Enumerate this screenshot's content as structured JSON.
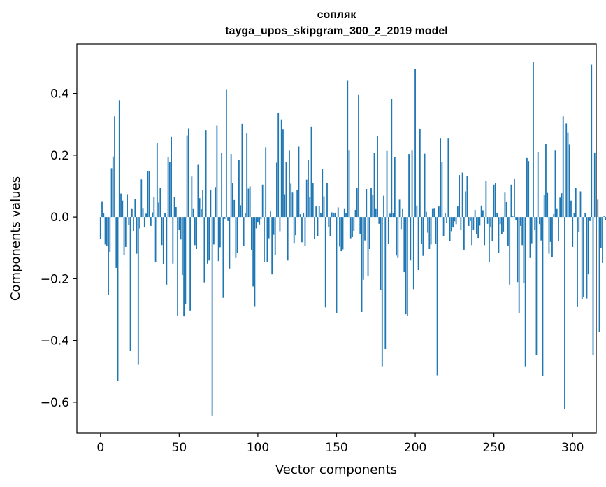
{
  "chart_data": {
    "type": "bar",
    "title": "сопляк",
    "subtitle": "tayga_upos_skipgram_300_2_2019 model",
    "xlabel": "Vector components",
    "ylabel": "Components values",
    "xlim": [
      -15,
      315
    ],
    "ylim": [
      -0.7,
      0.56
    ],
    "xticks": [
      0,
      50,
      100,
      150,
      200,
      250,
      300
    ],
    "yticks": [
      -0.6,
      -0.4,
      -0.2,
      0.0,
      0.2,
      0.4
    ],
    "ytick_labels": [
      "−0.6",
      "−0.4",
      "−0.2",
      "0.0",
      "0.2",
      "0.4"
    ],
    "bar_color": "#1f77b4",
    "grid": false,
    "values": [
      -0.071,
      0.051,
      0.012,
      -0.089,
      -0.094,
      -0.253,
      -0.113,
      0.158,
      0.196,
      0.326,
      -0.165,
      -0.531,
      0.378,
      0.076,
      0.053,
      -0.124,
      -0.097,
      0.074,
      -0.025,
      -0.433,
      0.028,
      -0.045,
      0.059,
      -0.119,
      -0.477,
      -0.037,
      0.122,
      0.029,
      -0.034,
      0.011,
      0.148,
      0.148,
      -0.029,
      0.015,
      0.066,
      -0.147,
      0.239,
      0.047,
      0.095,
      -0.091,
      -0.153,
      0.012,
      -0.219,
      0.195,
      0.179,
      0.259,
      -0.151,
      0.066,
      0.032,
      -0.319,
      -0.041,
      -0.073,
      -0.188,
      -0.322,
      -0.283,
      0.264,
      0.287,
      -0.303,
      0.131,
      0.028,
      -0.091,
      -0.104,
      0.169,
      0.061,
      0.025,
      0.088,
      -0.212,
      0.281,
      -0.151,
      -0.141,
      0.088,
      -0.643,
      -0.089,
      0.097,
      0.296,
      -0.143,
      -0.098,
      0.208,
      -0.262,
      -0.006,
      0.414,
      -0.013,
      -0.167,
      0.204,
      0.109,
      0.055,
      -0.133,
      -0.117,
      0.184,
      0.038,
      0.302,
      -0.094,
      0.012,
      0.272,
      0.092,
      0.099,
      -0.107,
      -0.225,
      -0.291,
      -0.037,
      -0.016,
      -0.024,
      -0.007,
      0.105,
      -0.146,
      0.226,
      -0.146,
      -0.069,
      0.018,
      -0.186,
      -0.058,
      -0.123,
      0.176,
      0.338,
      -0.046,
      0.316,
      0.283,
      0.074,
      0.177,
      -0.141,
      0.215,
      0.108,
      0.079,
      -0.084,
      -0.059,
      0.087,
      0.228,
      0.009,
      -0.082,
      0.014,
      -0.093,
      0.121,
      0.185,
      0.066,
      0.293,
      0.109,
      -0.071,
      0.034,
      -0.061,
      0.036,
      0.013,
      0.155,
      0.067,
      -0.293,
      0.111,
      -0.032,
      -0.061,
      0.015,
      0.013,
      0.014,
      -0.312,
      0.031,
      -0.096,
      -0.111,
      -0.105,
      0.028,
      0.013,
      0.441,
      0.215,
      -0.069,
      -0.064,
      -0.045,
      0.023,
      0.093,
      0.395,
      -0.054,
      -0.308,
      -0.203,
      -0.076,
      0.091,
      -0.192,
      -0.104,
      0.093,
      0.073,
      0.207,
      0.028,
      0.262,
      -0.022,
      -0.237,
      -0.484,
      0.069,
      -0.428,
      0.214,
      -0.086,
      0.011,
      0.383,
      0.014,
      0.195,
      -0.125,
      -0.133,
      0.056,
      -0.039,
      0.028,
      -0.179,
      -0.315,
      -0.321,
      0.204,
      -0.141,
      0.215,
      -0.234,
      0.479,
      0.037,
      -0.172,
      0.286,
      -0.087,
      -0.126,
      0.205,
      0.017,
      -0.051,
      -0.104,
      -0.089,
      0.028,
      0.029,
      -0.087,
      -0.513,
      0.034,
      0.256,
      0.178,
      -0.061,
      0.012,
      -0.019,
      0.256,
      -0.077,
      -0.046,
      -0.034,
      -0.014,
      -0.023,
      0.034,
      0.136,
      -0.043,
      0.144,
      -0.106,
      0.083,
      0.132,
      -0.029,
      -0.013,
      -0.091,
      -0.041,
      0.023,
      -0.054,
      -0.068,
      -0.028,
      0.037,
      0.022,
      -0.091,
      0.118,
      -0.022,
      -0.147,
      -0.034,
      -0.077,
      0.105,
      0.109,
      0.012,
      -0.117,
      -0.023,
      -0.056,
      -0.047,
      0.079,
      0.048,
      -0.094,
      -0.219,
      0.105,
      0.002,
      0.123,
      -0.011,
      -0.211,
      -0.312,
      -0.029,
      -0.091,
      -0.215,
      -0.484,
      0.191,
      0.181,
      -0.133,
      -0.085,
      0.503,
      -0.043,
      -0.448,
      0.211,
      -0.023,
      -0.076,
      -0.515,
      0.072,
      0.236,
      0.078,
      -0.119,
      -0.081,
      -0.131,
      0.009,
      0.215,
      0.028,
      -0.077,
      0.063,
      0.077,
      0.326,
      -0.622,
      0.303,
      0.273,
      0.235,
      0.053,
      -0.097,
      0.014,
      0.094,
      -0.292,
      -0.049,
      0.083,
      -0.267,
      -0.258,
      0.012,
      -0.264,
      -0.186,
      -0.013,
      0.493,
      -0.447,
      0.209,
      -0.042,
      0.056,
      -0.372,
      -0.101,
      -0.149,
      0.002,
      -0.011
    ]
  }
}
